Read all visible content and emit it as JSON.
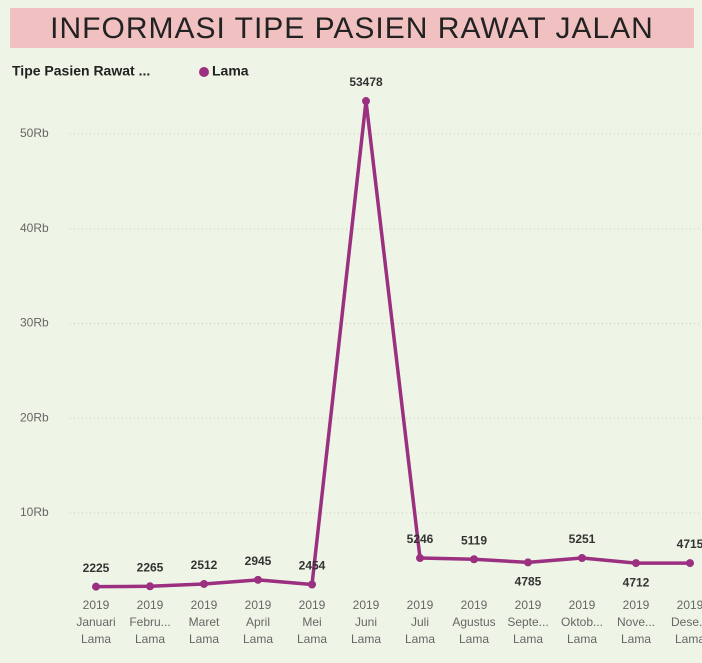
{
  "chart_data": {
    "type": "line",
    "title": "INFORMASI TIPE PASIEN RAWAT JALAN",
    "legend_title": "Tipe Pasien Rawat ...",
    "category_years": [
      "2019",
      "2019",
      "2019",
      "2019",
      "2019",
      "2019",
      "2019",
      "2019",
      "2019",
      "2019",
      "2019",
      "2019"
    ],
    "categories": [
      "Januari",
      "Febru...",
      "Maret",
      "April",
      "Mei",
      "Juni",
      "Juli",
      "Agustus",
      "Septe...",
      "Oktob...",
      "Nove...",
      "Dese..."
    ],
    "category_types": [
      "Lama",
      "Lama",
      "Lama",
      "Lama",
      "Lama",
      "Lama",
      "Lama",
      "Lama",
      "Lama",
      "Lama",
      "Lama",
      "Lama"
    ],
    "series": [
      {
        "name": "Lama",
        "color": "#9b2f80",
        "values": [
          2225,
          2265,
          2512,
          2945,
          2454,
          53478,
          5246,
          5119,
          4785,
          5251,
          4712,
          4715
        ]
      }
    ],
    "ylim": [
      0,
      55000
    ],
    "yticks": [
      {
        "value": 10000,
        "label": "10Rb"
      },
      {
        "value": 20000,
        "label": "20Rb"
      },
      {
        "value": 30000,
        "label": "30Rb"
      },
      {
        "value": 40000,
        "label": "40Rb"
      },
      {
        "value": 50000,
        "label": "50Rb"
      }
    ],
    "grid": true
  }
}
